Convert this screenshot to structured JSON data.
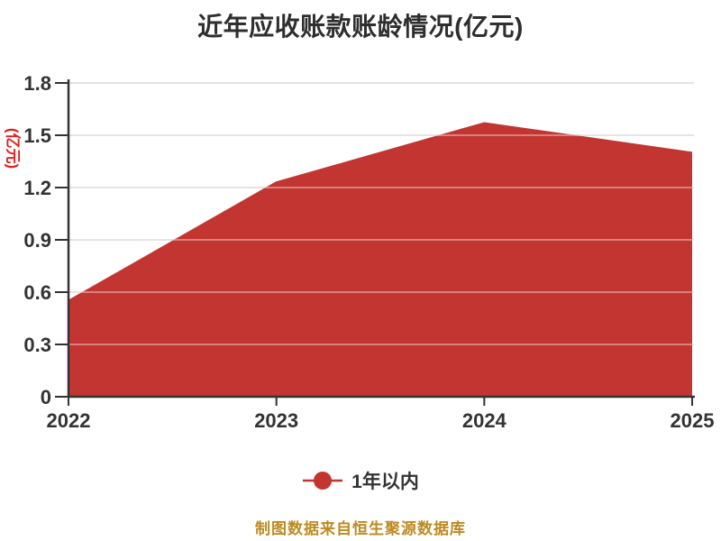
{
  "title": "近年应收账款账龄情况(亿元)",
  "source_note": "制图数据来自恒生聚源数据库",
  "legend": {
    "label": "1年以内",
    "marker_color": "#c23531"
  },
  "colors": {
    "area": "#c23531",
    "gridline": "#d4d4d4",
    "gridline_overlay": "rgba(255,255,255,0.38)",
    "axis": "#333333",
    "tick_label": "#333333",
    "title": "#2e2e2e",
    "y_axis_name": "#e02020",
    "source": "#bd8a1f"
  },
  "chart_data": {
    "type": "area",
    "title": "近年应收账款账龄情况(亿元)",
    "x": [
      2022,
      2023,
      2024,
      2025
    ],
    "series": [
      {
        "name": "1年以内",
        "values": [
          0.55,
          1.23,
          1.57,
          1.4
        ],
        "color": "#c23531"
      }
    ],
    "xlabel": "",
    "ylabel": "(亿元)",
    "ylim": [
      0,
      1.8
    ],
    "y_ticks": [
      0,
      0.3,
      0.6,
      0.9,
      1.2,
      1.5,
      1.8
    ],
    "grid": true,
    "legend_position": "bottom",
    "source": "制图数据来自恒生聚源数据库"
  }
}
